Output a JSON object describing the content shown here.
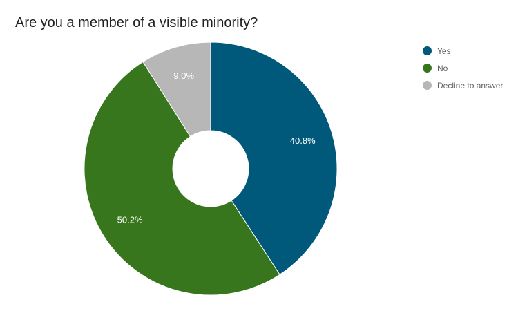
{
  "chart_data": {
    "type": "pie",
    "title": "Are you a member of a visible minority?",
    "donut": true,
    "legend_position": "right",
    "slices": [
      {
        "label": "Yes",
        "value": 40.8,
        "value_label": "40.8%",
        "color": "#00587a"
      },
      {
        "label": "No",
        "value": 50.2,
        "value_label": "50.2%",
        "color": "#38761d"
      },
      {
        "label": "Decline to answer",
        "value": 9.0,
        "value_label": "9.0%",
        "color": "#b7b7b7"
      }
    ]
  }
}
